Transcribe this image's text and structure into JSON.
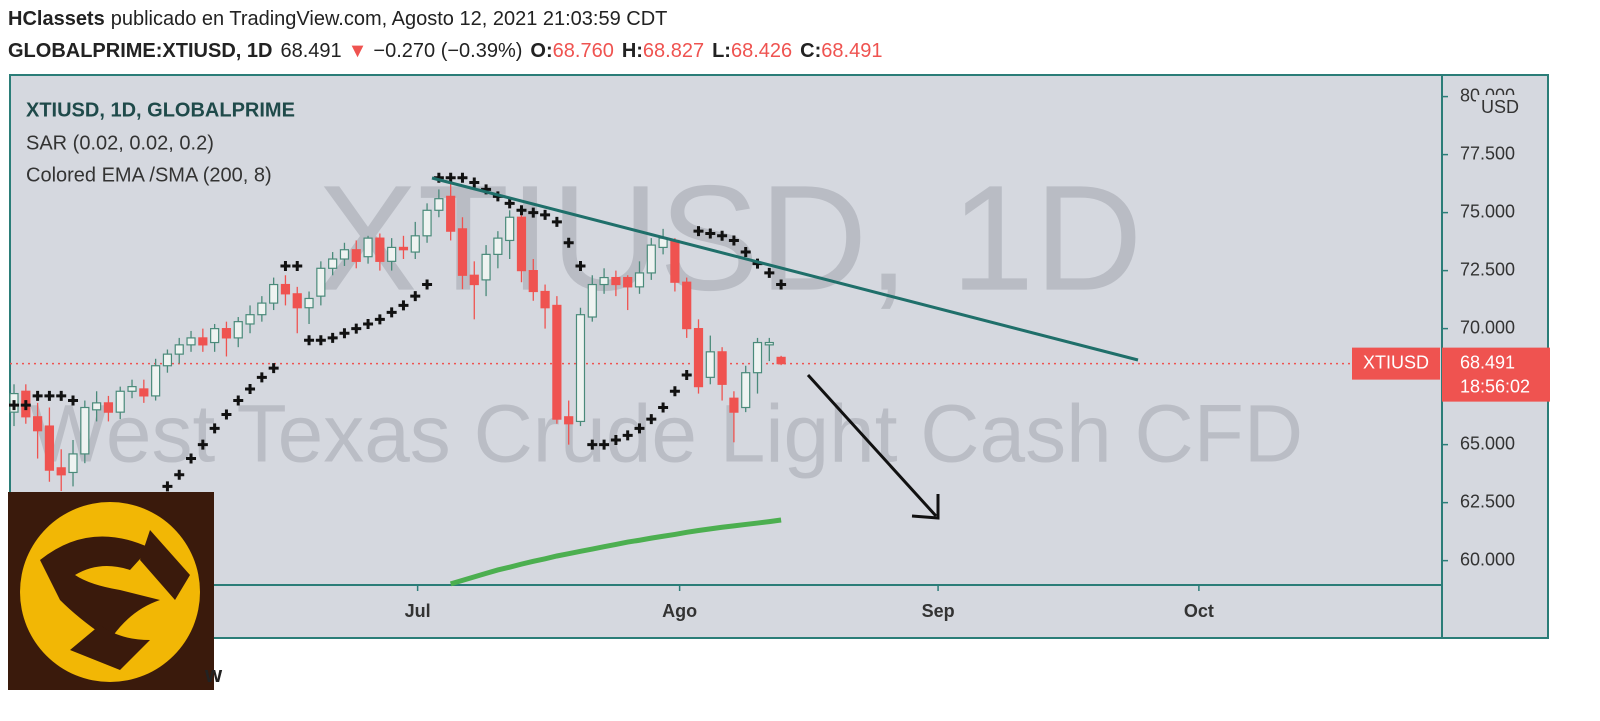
{
  "header": {
    "author": "HClassets",
    "published": "publicado en TradingView.com, Agosto 12, 2021 21:03:59 CDT",
    "symbol": "GLOBALPRIME:XTIUSD, 1D",
    "last": "68.491",
    "arrow": "▼",
    "change": "−0.270 (−0.39%)",
    "ohlc": [
      [
        "O:",
        "68.760"
      ],
      [
        "H:",
        "68.827"
      ],
      [
        "L:",
        "68.426"
      ],
      [
        "C:",
        "68.491"
      ]
    ]
  },
  "footer_fragment": "w",
  "chart_data": {
    "type": "candlestick",
    "title": "XTIUSD, 1D, GLOBALPRIME",
    "watermark": "XTIUSD, 1D",
    "watermark_subtitle": "West Texas Crude Light Cash CFD",
    "categories": [
      null,
      null,
      null,
      null,
      null,
      null,
      null,
      null,
      null,
      null,
      null,
      null,
      null,
      null,
      null,
      null,
      null,
      null,
      null,
      null,
      null,
      null,
      null,
      null,
      null,
      null,
      null,
      null,
      null,
      null,
      null,
      null,
      null,
      null,
      null,
      null,
      null,
      null,
      null,
      null,
      null,
      null,
      null,
      null,
      null,
      null,
      null,
      null,
      null,
      null,
      null,
      null,
      null,
      null,
      null,
      null,
      null,
      null,
      null,
      null,
      null,
      null,
      null,
      null,
      null,
      null
    ],
    "open": [
      66.4,
      67.3,
      66.2,
      65.8,
      64.0,
      63.8,
      64.6,
      66.5,
      66.8,
      66.4,
      67.3,
      67.4,
      67.1,
      68.4,
      68.9,
      69.3,
      69.6,
      69.4,
      70.0,
      69.6,
      70.2,
      70.6,
      71.1,
      71.9,
      71.5,
      70.9,
      71.4,
      72.6,
      73.0,
      73.4,
      73.1,
      73.9,
      72.9,
      73.5,
      73.3,
      74.0,
      75.1,
      75.7,
      74.3,
      72.3,
      72.1,
      73.2,
      73.8,
      74.8,
      72.5,
      71.6,
      71.0,
      66.2,
      66.0,
      70.5,
      71.9,
      72.2,
      72.2,
      71.8,
      72.4,
      73.5,
      73.8,
      72.0,
      70.0,
      67.9,
      69.0,
      67.0,
      66.6,
      68.1,
      69.3,
      68.76
    ],
    "high": [
      67.6,
      67.6,
      66.8,
      66.6,
      64.8,
      65.2,
      66.9,
      67.3,
      67.1,
      67.5,
      67.8,
      67.8,
      68.7,
      69.1,
      69.6,
      69.9,
      70.0,
      70.2,
      70.3,
      70.5,
      71.0,
      71.4,
      72.2,
      72.3,
      71.8,
      71.6,
      72.9,
      73.3,
      73.7,
      73.8,
      74.0,
      74.1,
      73.9,
      74.0,
      74.6,
      75.4,
      76.0,
      76.3,
      74.8,
      72.9,
      73.6,
      74.2,
      75.1,
      75.0,
      73.0,
      71.9,
      71.4,
      66.9,
      70.9,
      72.3,
      72.6,
      72.5,
      72.3,
      72.9,
      73.9,
      74.3,
      73.9,
      72.2,
      70.4,
      69.7,
      69.2,
      67.3,
      68.4,
      69.6,
      69.6,
      68.827
    ],
    "low": [
      65.8,
      65.9,
      64.4,
      63.4,
      63.0,
      63.2,
      64.2,
      66.0,
      66.0,
      66.1,
      67.0,
      66.8,
      66.9,
      68.1,
      68.5,
      69.0,
      69.0,
      69.0,
      68.8,
      69.2,
      69.8,
      70.3,
      70.8,
      71.0,
      69.8,
      70.2,
      71.0,
      72.3,
      72.7,
      72.6,
      72.8,
      72.5,
      72.5,
      73.0,
      73.0,
      73.7,
      74.8,
      73.8,
      71.7,
      70.4,
      71.4,
      72.6,
      73.0,
      72.0,
      71.2,
      70.0,
      65.9,
      65.0,
      65.8,
      70.3,
      71.5,
      71.4,
      70.8,
      71.5,
      72.1,
      73.2,
      71.6,
      69.6,
      67.2,
      67.6,
      66.9,
      65.1,
      66.4,
      67.2,
      68.6,
      68.426
    ],
    "close": [
      67.2,
      66.2,
      65.6,
      63.9,
      63.7,
      64.6,
      66.6,
      66.8,
      66.4,
      67.3,
      67.5,
      67.1,
      68.4,
      68.9,
      69.3,
      69.6,
      69.3,
      70.0,
      69.6,
      70.3,
      70.6,
      71.1,
      71.9,
      71.5,
      70.9,
      71.3,
      72.6,
      73.0,
      73.4,
      72.9,
      73.9,
      72.9,
      73.5,
      73.4,
      74.0,
      75.1,
      75.6,
      74.2,
      72.3,
      71.9,
      73.2,
      73.9,
      74.8,
      72.5,
      71.6,
      70.9,
      66.1,
      65.9,
      70.6,
      71.9,
      72.2,
      71.9,
      71.8,
      72.4,
      73.6,
      73.9,
      72.0,
      70.0,
      67.5,
      69.0,
      67.6,
      66.4,
      68.1,
      69.4,
      69.4,
      68.491
    ],
    "up_color": "#4a8a7a",
    "down_color": "#ef5350",
    "series": [
      {
        "name": "SAR (0.02, 0.02, 0.2)",
        "color": "#111111",
        "style": "cross",
        "values": [
          66.7,
          66.7,
          67.1,
          67.1,
          67.1,
          66.9,
          null,
          null,
          null,
          null,
          null,
          null,
          null,
          63.2,
          63.7,
          64.4,
          65.0,
          65.7,
          66.3,
          66.9,
          67.4,
          67.9,
          68.3,
          72.7,
          72.7,
          69.5,
          69.5,
          69.6,
          69.8,
          70.0,
          70.2,
          70.4,
          70.7,
          71.0,
          71.4,
          71.9,
          76.5,
          76.5,
          76.5,
          76.3,
          76.0,
          75.7,
          75.4,
          75.1,
          75.0,
          74.9,
          74.6,
          73.7,
          72.7,
          65.0,
          65.0,
          65.2,
          65.4,
          65.7,
          66.1,
          66.6,
          67.3,
          68.0,
          74.2,
          74.1,
          74.0,
          73.8,
          73.3,
          72.8,
          72.4,
          71.9
        ]
      },
      {
        "name": "Colored EMA /SMA (200, 8)",
        "color": "#4caf50",
        "style": "line",
        "values": [
          null,
          null,
          null,
          null,
          null,
          null,
          null,
          null,
          null,
          null,
          null,
          null,
          null,
          null,
          null,
          null,
          null,
          null,
          null,
          null,
          null,
          null,
          null,
          null,
          null,
          null,
          null,
          null,
          null,
          null,
          null,
          null,
          null,
          null,
          null,
          null,
          null,
          59.0,
          59.15,
          59.3,
          59.45,
          59.6,
          59.72,
          59.85,
          59.97,
          60.08,
          60.2,
          60.3,
          60.4,
          60.5,
          60.6,
          60.7,
          60.8,
          60.88,
          60.97,
          61.05,
          61.13,
          61.22,
          61.3,
          61.37,
          61.44,
          61.5,
          61.56,
          61.62,
          61.68,
          61.75
        ]
      }
    ],
    "ylim": [
      58.95,
      80.5
    ],
    "yticks": [
      {
        "value": 80,
        "label": "80.000"
      },
      {
        "value": 77.5,
        "label": "77.500"
      },
      {
        "value": 75,
        "label": "75.000"
      },
      {
        "value": 72.5,
        "label": "72.500"
      },
      {
        "value": 70,
        "label": "70.000"
      },
      {
        "value": 65,
        "label": "65.000"
      },
      {
        "value": 62.5,
        "label": "62.500"
      },
      {
        "value": 60,
        "label": "60.000"
      }
    ],
    "currency": "USD",
    "xlim": [
      -0.34,
      121.0
    ],
    "xticks": [
      {
        "value": 34.2,
        "label": "Jul"
      },
      {
        "value": 56.4,
        "label": "Ago"
      },
      {
        "value": 78.3,
        "label": "Sep"
      },
      {
        "value": 100.4,
        "label": "Oct"
      }
    ],
    "price_label": {
      "name": "XTIUSD",
      "value": 68.491,
      "label": "68.491",
      "countdown": "18:56:02"
    }
  }
}
